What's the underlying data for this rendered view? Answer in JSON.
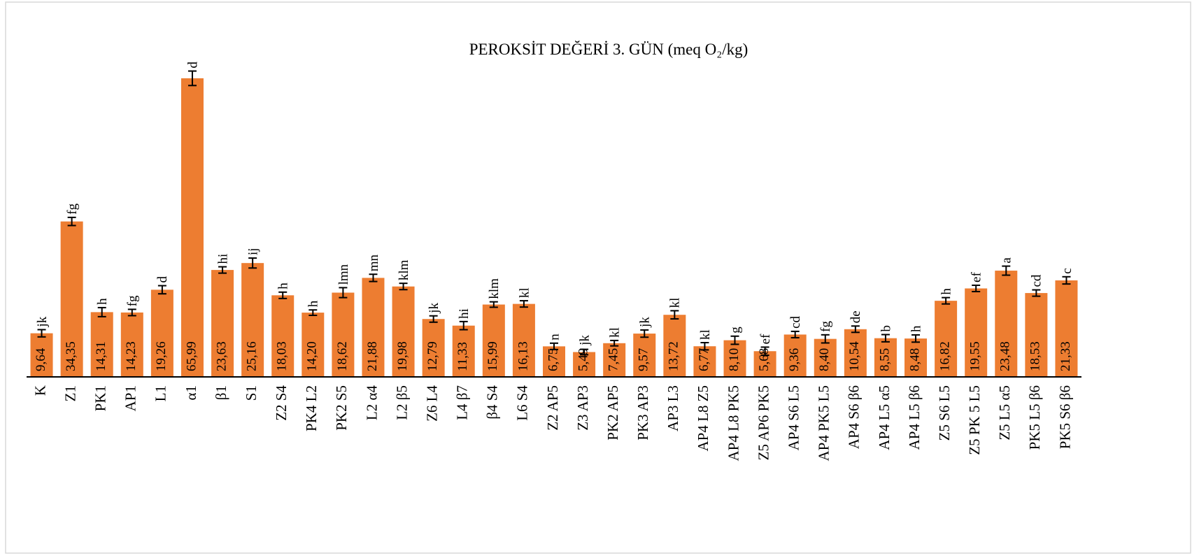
{
  "chart_data": {
    "type": "bar",
    "title": "PEROKSİT DEĞERİ 3. GÜN (meq O₂/kg)",
    "color": "#ed7d31",
    "categories": [
      "K",
      "Z1",
      "PK1",
      "AP1",
      "L1",
      "α1",
      "β1",
      "S1",
      "Z2 S4",
      "PK4 L2",
      "PK2 S5",
      "L2 α4",
      "L2 β5",
      "Z6 L4",
      "L4 β7",
      "β4 S4",
      "L6 S4",
      "Z2 AP5",
      "Z3 AP3",
      "PK2 AP5",
      "PK3 AP3",
      "AP3 L3",
      "AP4 L8 Z5",
      "AP4 L8 PK5",
      "Z5 AP6 PK5",
      "AP4 S6 L5",
      "AP4 PK5 L5",
      "AP4 S6 β6",
      "AP4 L5 α5",
      "AP4 L5 β6",
      "Z5 S6 L5",
      "Z5 PK 5 L5",
      "Z5 L5 α5",
      "PK5 L5 β6",
      "PK5 S6 β6"
    ],
    "values": [
      9.64,
      34.35,
      14.31,
      14.23,
      19.26,
      65.99,
      23.63,
      25.16,
      18.03,
      14.2,
      18.62,
      21.88,
      19.98,
      12.79,
      11.33,
      15.99,
      16.13,
      6.75,
      5.49,
      7.45,
      9.57,
      13.72,
      6.77,
      8.1,
      5.68,
      9.36,
      8.4,
      10.54,
      8.55,
      8.48,
      16.82,
      19.55,
      23.48,
      18.53,
      21.33
    ],
    "value_labels": [
      "9,64",
      "34,35",
      "14,31",
      "14,23",
      "19,26",
      "65,99",
      "23,63",
      "25,16",
      "18,03",
      "14,20",
      "18,62",
      "21,88",
      "19,98",
      "12,79",
      "11,33",
      "15,99",
      "16,13",
      "6,75",
      "5,49",
      "7,45",
      "9,57",
      "13,72",
      "6,77",
      "8,10",
      "5,68",
      "9,36",
      "8,40",
      "10,54",
      "8,55",
      "8,48",
      "16,82",
      "19,55",
      "23,48",
      "18,53",
      "21,33"
    ],
    "errors": [
      0.8,
      0.9,
      1.0,
      0.7,
      0.9,
      1.6,
      0.7,
      1.1,
      0.7,
      0.6,
      1.1,
      0.8,
      0.7,
      0.7,
      0.9,
      0.6,
      0.7,
      0.7,
      0.6,
      0.6,
      0.8,
      0.9,
      0.8,
      0.9,
      0.9,
      0.7,
      0.9,
      0.7,
      0.8,
      0.8,
      0.7,
      0.7,
      1.0,
      0.7,
      0.8
    ],
    "significance_letters": [
      "jk",
      "fg",
      "h",
      "fg",
      "d",
      "d",
      "hi",
      "ij",
      "h",
      "h",
      "lmn",
      "mn",
      "klm",
      "jk",
      "hi",
      "klm",
      "kl",
      "n",
      "jk",
      "kl",
      "jk",
      "kl",
      "kl",
      "g",
      "ef",
      "cd",
      "fg",
      "de",
      "b",
      "h",
      "h",
      "ef",
      "a",
      "cd",
      "c"
    ],
    "ylim": [
      0,
      70
    ]
  }
}
